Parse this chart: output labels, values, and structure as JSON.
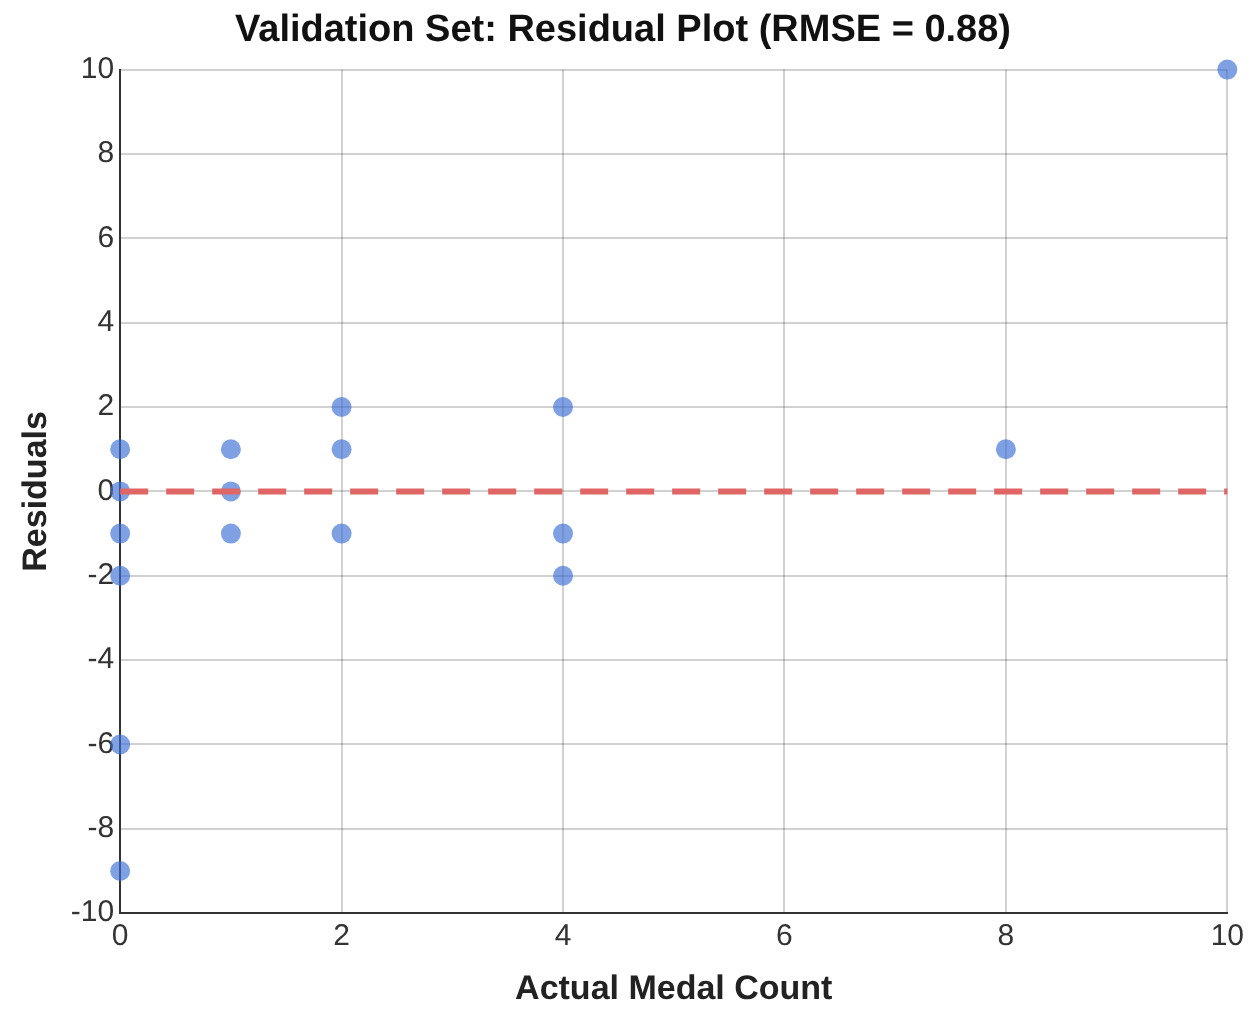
{
  "chart_data": {
    "type": "scatter",
    "title": "Validation Set: Residual Plot (RMSE = 0.88)",
    "xlabel": "Actual Medal Count",
    "ylabel": "Residuals",
    "series": [
      {
        "color": "#3a6fd6",
        "x": [
          0,
          0,
          0,
          0,
          0,
          0,
          1,
          1,
          1,
          2,
          2,
          2,
          4,
          4,
          4,
          8,
          10
        ],
        "values": [
          1,
          0,
          -1,
          -2,
          -6,
          -9,
          1,
          0,
          -1,
          2,
          1,
          -1,
          2,
          -1,
          -2,
          1,
          10
        ]
      }
    ],
    "xlim": [
      0,
      10
    ],
    "xticks": [
      0,
      2,
      4,
      6,
      8,
      10
    ],
    "ylim": [
      -10,
      10
    ],
    "yticks": [
      -10,
      -8,
      -6,
      -4,
      -2,
      0,
      2,
      4,
      6,
      8,
      10
    ],
    "ref_lines": [
      {
        "axis": "y",
        "value": 0,
        "color": "#e06666",
        "line_style": "dashed"
      }
    ],
    "grid": true,
    "legend": false,
    "marker": "circle"
  }
}
